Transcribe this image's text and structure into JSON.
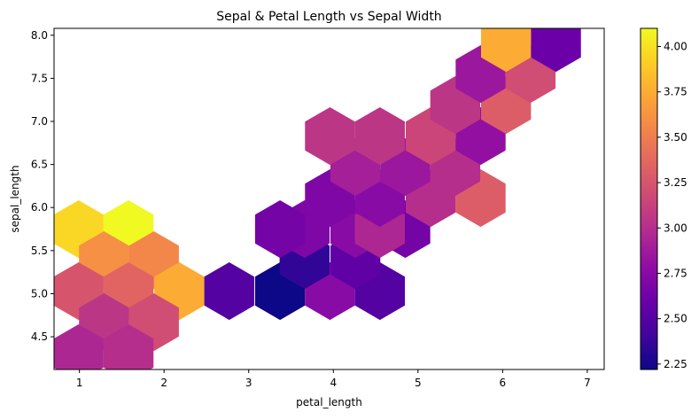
{
  "chart_data": {
    "type": "heatmap",
    "subtype": "hexbin",
    "title": "Sepal & Petal Length vs Sepal Width",
    "xlabel": "petal_length",
    "ylabel": "sepal_length",
    "xlim": [
      0.7,
      7.2
    ],
    "ylim": [
      4.12,
      8.08
    ],
    "x_ticks": [
      1,
      2,
      3,
      4,
      5,
      6,
      7
    ],
    "y_ticks": [
      4.5,
      5.0,
      5.5,
      6.0,
      6.5,
      7.0,
      7.5,
      8.0
    ],
    "x_tick_labels": [
      "1",
      "2",
      "3",
      "4",
      "5",
      "6",
      "7"
    ],
    "y_tick_labels": [
      "4.5",
      "5.0",
      "5.5",
      "6.0",
      "6.5",
      "7.0",
      "7.5",
      "8.0"
    ],
    "colorbar": {
      "colormap": "plasma",
      "range": [
        2.22,
        4.1
      ],
      "ticks": [
        2.25,
        2.5,
        2.75,
        3.0,
        3.25,
        3.5,
        3.75,
        4.0
      ],
      "tick_labels": [
        "2.25",
        "2.50",
        "2.75",
        "3.00",
        "3.25",
        "3.50",
        "3.75",
        "4.00"
      ]
    },
    "grid": false,
    "hex_cells": [
      {
        "x": 0.99,
        "y": 5.75,
        "value": 3.95
      },
      {
        "x": 1.58,
        "y": 5.75,
        "value": 4.1
      },
      {
        "x": 1.29,
        "y": 5.39,
        "value": 3.6
      },
      {
        "x": 1.88,
        "y": 5.39,
        "value": 3.55
      },
      {
        "x": 0.99,
        "y": 5.03,
        "value": 3.25
      },
      {
        "x": 1.58,
        "y": 5.03,
        "value": 3.35
      },
      {
        "x": 2.18,
        "y": 5.03,
        "value": 3.75
      },
      {
        "x": 1.29,
        "y": 4.67,
        "value": 3.05
      },
      {
        "x": 1.88,
        "y": 4.67,
        "value": 3.2
      },
      {
        "x": 0.99,
        "y": 4.31,
        "value": 2.95
      },
      {
        "x": 1.58,
        "y": 4.31,
        "value": 3.0
      },
      {
        "x": 2.77,
        "y": 5.03,
        "value": 2.5
      },
      {
        "x": 3.37,
        "y": 5.03,
        "value": 2.22
      },
      {
        "x": 3.96,
        "y": 5.03,
        "value": 2.75
      },
      {
        "x": 4.55,
        "y": 5.03,
        "value": 2.5
      },
      {
        "x": 3.66,
        "y": 5.39,
        "value": 2.35
      },
      {
        "x": 4.26,
        "y": 5.39,
        "value": 2.55
      },
      {
        "x": 3.66,
        "y": 5.75,
        "value": 2.7
      },
      {
        "x": 4.26,
        "y": 5.75,
        "value": 2.75
      },
      {
        "x": 4.85,
        "y": 5.75,
        "value": 2.65
      },
      {
        "x": 3.37,
        "y": 5.75,
        "value": 2.65
      },
      {
        "x": 4.55,
        "y": 5.75,
        "value": 2.95
      },
      {
        "x": 3.96,
        "y": 6.11,
        "value": 2.7
      },
      {
        "x": 4.55,
        "y": 6.11,
        "value": 2.75
      },
      {
        "x": 5.15,
        "y": 6.11,
        "value": 3.0
      },
      {
        "x": 5.74,
        "y": 6.11,
        "value": 3.3
      },
      {
        "x": 4.26,
        "y": 6.47,
        "value": 2.9
      },
      {
        "x": 4.85,
        "y": 6.47,
        "value": 2.85
      },
      {
        "x": 5.44,
        "y": 6.47,
        "value": 3.0
      },
      {
        "x": 3.96,
        "y": 6.83,
        "value": 3.05
      },
      {
        "x": 4.55,
        "y": 6.83,
        "value": 3.05
      },
      {
        "x": 5.15,
        "y": 6.83,
        "value": 3.15
      },
      {
        "x": 5.74,
        "y": 6.83,
        "value": 2.8
      },
      {
        "x": 5.44,
        "y": 7.19,
        "value": 3.05
      },
      {
        "x": 6.04,
        "y": 7.19,
        "value": 3.3
      },
      {
        "x": 5.74,
        "y": 7.55,
        "value": 2.85
      },
      {
        "x": 6.33,
        "y": 7.55,
        "value": 3.2
      },
      {
        "x": 6.04,
        "y": 7.91,
        "value": 3.75
      },
      {
        "x": 6.63,
        "y": 7.91,
        "value": 2.6
      }
    ]
  }
}
